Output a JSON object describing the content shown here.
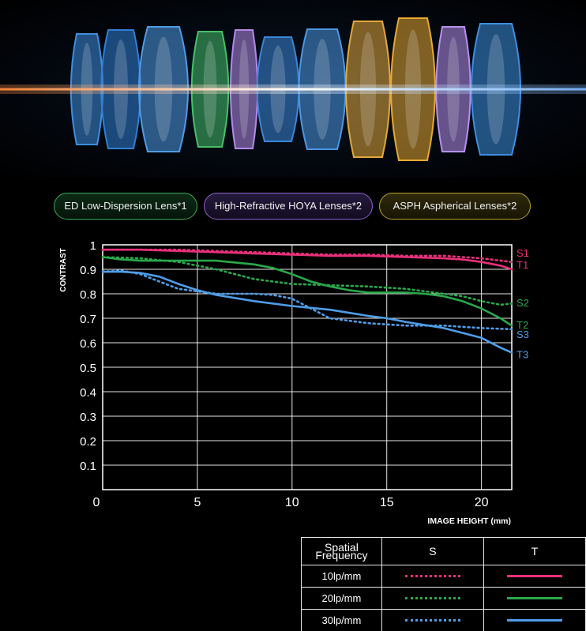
{
  "lens_badges": [
    {
      "label": "ED Low-Dispersion Lens*1"
    },
    {
      "label": "High-Refractive HOYA Lenses*2"
    },
    {
      "label": "ASPH Aspherical Lenses*2"
    }
  ],
  "lens_elements": [
    {
      "color": "#3e8ee0"
    },
    {
      "color": "#2f7fd6"
    },
    {
      "color": "#4f9be6"
    },
    {
      "color": "#46c06a"
    },
    {
      "color": "#b48ae8"
    },
    {
      "color": "#3a86d8"
    },
    {
      "color": "#4a97e2"
    },
    {
      "color": "#e3a83a"
    },
    {
      "color": "#e6a832"
    },
    {
      "color": "#b690ee"
    },
    {
      "color": "#3d8fdf"
    }
  ],
  "chart_data": {
    "type": "line",
    "ylabel": "CONTRAST",
    "xlabel": "IMAGE HEIGHT",
    "xunit": "(mm)",
    "xlim": [
      0,
      21.6
    ],
    "ylim": [
      0,
      1
    ],
    "x_ticks": [
      "0",
      "5",
      "10",
      "15",
      "20"
    ],
    "y_ticks": [
      "1",
      "0.9",
      "0.8",
      "0.7",
      "0.6",
      "0.5",
      "0.4",
      "0.3",
      "0.2",
      "0.1"
    ],
    "grid": true,
    "series": [
      {
        "name": "S1",
        "style": "dotted",
        "color": "#e8307a",
        "x": [
          0,
          2,
          4,
          6,
          8,
          10,
          12,
          14,
          16,
          18,
          19,
          20,
          21.6
        ],
        "y": [
          0.98,
          0.98,
          0.98,
          0.975,
          0.97,
          0.965,
          0.96,
          0.96,
          0.955,
          0.955,
          0.95,
          0.945,
          0.93
        ]
      },
      {
        "name": "T1",
        "style": "solid",
        "color": "#e8307a",
        "x": [
          0,
          2,
          4,
          6,
          8,
          10,
          12,
          14,
          16,
          18,
          19,
          20,
          21,
          21.6
        ],
        "y": [
          0.98,
          0.98,
          0.975,
          0.97,
          0.965,
          0.96,
          0.955,
          0.955,
          0.95,
          0.945,
          0.94,
          0.93,
          0.915,
          0.9
        ]
      },
      {
        "name": "S2",
        "style": "dotted",
        "color": "#2aa84a",
        "x": [
          0,
          2,
          4,
          6,
          7,
          8,
          9,
          10,
          12,
          14,
          16,
          18,
          19,
          20,
          21,
          21.6
        ],
        "y": [
          0.95,
          0.945,
          0.93,
          0.9,
          0.88,
          0.86,
          0.85,
          0.84,
          0.835,
          0.83,
          0.82,
          0.8,
          0.79,
          0.77,
          0.755,
          0.76
        ]
      },
      {
        "name": "T2",
        "style": "solid",
        "color": "#2aa84a",
        "x": [
          0,
          1,
          2,
          4,
          6,
          8,
          9,
          10,
          11,
          12,
          13,
          14,
          16,
          17,
          18,
          19,
          20,
          21,
          21.6
        ],
        "y": [
          0.95,
          0.94,
          0.935,
          0.935,
          0.935,
          0.92,
          0.905,
          0.88,
          0.85,
          0.83,
          0.815,
          0.805,
          0.805,
          0.8,
          0.79,
          0.77,
          0.74,
          0.7,
          0.67
        ]
      },
      {
        "name": "S3",
        "style": "dotted",
        "color": "#4f9de8",
        "x": [
          0,
          1,
          2,
          3,
          4,
          5,
          6,
          8,
          9,
          10,
          11,
          12,
          14,
          16,
          18,
          20,
          21.6
        ],
        "y": [
          0.89,
          0.895,
          0.88,
          0.85,
          0.82,
          0.81,
          0.8,
          0.8,
          0.795,
          0.78,
          0.74,
          0.7,
          0.68,
          0.67,
          0.67,
          0.66,
          0.655
        ]
      },
      {
        "name": "T3",
        "style": "solid",
        "color": "#4f9de8",
        "x": [
          0,
          1,
          2,
          3,
          4,
          5,
          6,
          8,
          10,
          12,
          14,
          15,
          16,
          18,
          20,
          21,
          21.6
        ],
        "y": [
          0.89,
          0.89,
          0.885,
          0.87,
          0.84,
          0.815,
          0.795,
          0.77,
          0.75,
          0.735,
          0.71,
          0.7,
          0.685,
          0.66,
          0.62,
          0.58,
          0.56
        ]
      }
    ],
    "labels": [
      {
        "text": "S1",
        "color": "#e8307a",
        "y": 0.968
      },
      {
        "text": "T1",
        "color": "#e8307a",
        "y": 0.92
      },
      {
        "text": "S2",
        "color": "#2aa84a",
        "y": 0.765
      },
      {
        "text": "T2",
        "color": "#2aa84a",
        "y": 0.675
      },
      {
        "text": "S3",
        "color": "#4f9de8",
        "y": 0.635
      },
      {
        "text": "T3",
        "color": "#4f9de8",
        "y": 0.553
      }
    ]
  },
  "legend": {
    "header": {
      "label": "Spatial Frequency",
      "s": "S",
      "t": "T"
    },
    "rows": [
      {
        "label": "10lp/mm",
        "color": "#e8307a"
      },
      {
        "label": "20lp/mm",
        "color": "#2aa84a"
      },
      {
        "label": "30lp/mm",
        "color": "#4f9de8"
      }
    ]
  }
}
